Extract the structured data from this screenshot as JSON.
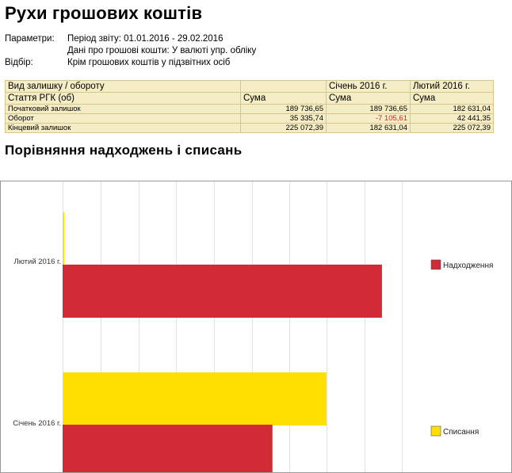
{
  "report": {
    "title": "Рухи грошових коштів",
    "params": [
      {
        "label": "Параметри:",
        "text": "Період звіту: 01.01.2016 - 29.02.2016"
      },
      {
        "label": "",
        "text": "Дані про грошові кошти: У валюті упр. обліку"
      },
      {
        "label": "Відбір:",
        "text": "Крім грошових коштів у підзвітних осіб"
      }
    ]
  },
  "table": {
    "header1": [
      "Вид залишку / обороту",
      "",
      "Січень 2016 г.",
      "Лютий 2016 г."
    ],
    "header2": [
      "Стаття РГК (об)",
      "Сума",
      "Сума",
      "Сума"
    ],
    "rows": [
      {
        "label": "Початковий залишок",
        "values": [
          "189 736,65",
          "189 736,65",
          "182 631,04"
        ],
        "negative": [
          false,
          false,
          false
        ]
      },
      {
        "label": "Оборот",
        "values": [
          "35 335,74",
          "-7 105,61",
          "42 441,35"
        ],
        "negative": [
          false,
          true,
          false
        ]
      },
      {
        "label": "Кінцевий залишок",
        "values": [
          "225 072,39",
          "182 631,04",
          "225 072,39"
        ],
        "negative": [
          false,
          false,
          false
        ]
      }
    ]
  },
  "chart": {
    "title": "Порівняння надходжень і списань"
  },
  "chart_data": {
    "type": "bar",
    "orientation": "horizontal",
    "categories": [
      "Лютий 2016 г.",
      "Січень 2016 г."
    ],
    "series": [
      {
        "name": "Надходження",
        "color": "#d12b36",
        "values": [
          42000,
          27600
        ]
      },
      {
        "name": "Списання",
        "color": "#ffe000",
        "values": [
          0,
          34700
        ]
      }
    ],
    "xlim": [
      0,
      59000
    ],
    "grid": true,
    "legend": "right"
  }
}
